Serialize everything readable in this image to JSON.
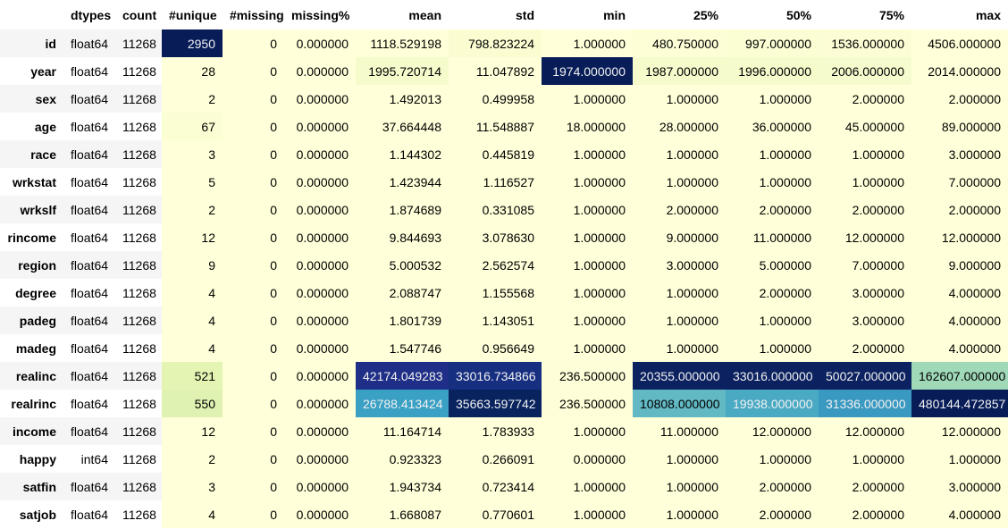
{
  "columns": [
    "dtypes",
    "count",
    "#unique",
    "#missing",
    "missing%",
    "mean",
    "std",
    "min",
    "25%",
    "50%",
    "75%",
    "max"
  ],
  "rows": [
    {
      "name": "id",
      "cells": [
        "float64",
        "11268",
        "2950",
        "0",
        "0.000000",
        "1118.529198",
        "798.823224",
        "1.000000",
        "480.750000",
        "997.000000",
        "1536.000000",
        "4506.000000"
      ]
    },
    {
      "name": "year",
      "cells": [
        "float64",
        "11268",
        "28",
        "0",
        "0.000000",
        "1995.720714",
        "11.047892",
        "1974.000000",
        "1987.000000",
        "1996.000000",
        "2006.000000",
        "2014.000000"
      ]
    },
    {
      "name": "sex",
      "cells": [
        "float64",
        "11268",
        "2",
        "0",
        "0.000000",
        "1.492013",
        "0.499958",
        "1.000000",
        "1.000000",
        "1.000000",
        "2.000000",
        "2.000000"
      ]
    },
    {
      "name": "age",
      "cells": [
        "float64",
        "11268",
        "67",
        "0",
        "0.000000",
        "37.664448",
        "11.548887",
        "18.000000",
        "28.000000",
        "36.000000",
        "45.000000",
        "89.000000"
      ]
    },
    {
      "name": "race",
      "cells": [
        "float64",
        "11268",
        "3",
        "0",
        "0.000000",
        "1.144302",
        "0.445819",
        "1.000000",
        "1.000000",
        "1.000000",
        "1.000000",
        "3.000000"
      ]
    },
    {
      "name": "wrkstat",
      "cells": [
        "float64",
        "11268",
        "5",
        "0",
        "0.000000",
        "1.423944",
        "1.116527",
        "1.000000",
        "1.000000",
        "1.000000",
        "1.000000",
        "7.000000"
      ]
    },
    {
      "name": "wrkslf",
      "cells": [
        "float64",
        "11268",
        "2",
        "0",
        "0.000000",
        "1.874689",
        "0.331085",
        "1.000000",
        "2.000000",
        "2.000000",
        "2.000000",
        "2.000000"
      ]
    },
    {
      "name": "rincome",
      "cells": [
        "float64",
        "11268",
        "12",
        "0",
        "0.000000",
        "9.844693",
        "3.078630",
        "1.000000",
        "9.000000",
        "11.000000",
        "12.000000",
        "12.000000"
      ]
    },
    {
      "name": "region",
      "cells": [
        "float64",
        "11268",
        "9",
        "0",
        "0.000000",
        "5.000532",
        "2.562574",
        "1.000000",
        "3.000000",
        "5.000000",
        "7.000000",
        "9.000000"
      ]
    },
    {
      "name": "degree",
      "cells": [
        "float64",
        "11268",
        "4",
        "0",
        "0.000000",
        "2.088747",
        "1.155568",
        "1.000000",
        "1.000000",
        "2.000000",
        "3.000000",
        "4.000000"
      ]
    },
    {
      "name": "padeg",
      "cells": [
        "float64",
        "11268",
        "4",
        "0",
        "0.000000",
        "1.801739",
        "1.143051",
        "1.000000",
        "1.000000",
        "1.000000",
        "3.000000",
        "4.000000"
      ]
    },
    {
      "name": "madeg",
      "cells": [
        "float64",
        "11268",
        "4",
        "0",
        "0.000000",
        "1.547746",
        "0.956649",
        "1.000000",
        "1.000000",
        "1.000000",
        "2.000000",
        "4.000000"
      ]
    },
    {
      "name": "realinc",
      "cells": [
        "float64",
        "11268",
        "521",
        "0",
        "0.000000",
        "42174.049283",
        "33016.734866",
        "236.500000",
        "20355.000000",
        "33016.000000",
        "50027.000000",
        "162607.000000"
      ]
    },
    {
      "name": "realrinc",
      "cells": [
        "float64",
        "11268",
        "550",
        "0",
        "0.000000",
        "26788.413424",
        "35663.597742",
        "236.500000",
        "10808.000000",
        "19938.000000",
        "31336.000000",
        "480144.472857"
      ]
    },
    {
      "name": "income",
      "cells": [
        "float64",
        "11268",
        "12",
        "0",
        "0.000000",
        "11.164714",
        "1.783933",
        "1.000000",
        "11.000000",
        "12.000000",
        "12.000000",
        "12.000000"
      ]
    },
    {
      "name": "happy",
      "cells": [
        "int64",
        "11268",
        "2",
        "0",
        "0.000000",
        "0.923323",
        "0.266091",
        "0.000000",
        "1.000000",
        "1.000000",
        "1.000000",
        "1.000000"
      ]
    },
    {
      "name": "satfin",
      "cells": [
        "float64",
        "11268",
        "3",
        "0",
        "0.000000",
        "1.943734",
        "0.723414",
        "1.000000",
        "1.000000",
        "2.000000",
        "2.000000",
        "3.000000"
      ]
    },
    {
      "name": "satjob",
      "cells": [
        "float64",
        "11268",
        "4",
        "0",
        "0.000000",
        "1.668087",
        "0.770601",
        "1.000000",
        "1.000000",
        "2.000000",
        "2.000000",
        "4.000000"
      ]
    }
  ],
  "colormap": {
    "low": "#ffffd9",
    "light_green": "#edf8b1",
    "green": "#c7e9b4",
    "teal_light": "#7fcdbb",
    "teal": "#41b6c4",
    "blue": "#1d91c0",
    "blue_mid": "#225ea8",
    "dark": "#253494",
    "darkest": "#081d58"
  },
  "cell_colors": {
    "0": {
      "2": "#081d58",
      "5": "#ffffd9",
      "6": "#fbfdd1",
      "7": "#ffffd9",
      "8": "#fdfed6",
      "9": "#fbfdd2",
      "10": "#fcfdd4",
      "11": "#ffffd9"
    },
    "1": {
      "2": "#ffffd9",
      "5": "#f6fbcb",
      "6": "#ffffd9",
      "7": "#081d58",
      "8": "#f5fbcb",
      "9": "#f5fbcb",
      "10": "#f6fbcd",
      "11": "#ffffd9"
    },
    "3": {
      "2": "#fbfdd3"
    },
    "12": {
      "2": "#e4f4b3",
      "5": "#1f2f87",
      "6": "#172f80",
      "7": "#fefed8",
      "8": "#0c2260",
      "9": "#0c2260",
      "10": "#0c2260",
      "11": "#9fd9b8"
    },
    "13": {
      "2": "#dff2b2",
      "5": "#3aa0c4",
      "6": "#08235e",
      "7": "#fefed8",
      "8": "#62b8c3",
      "9": "#4aa9c3",
      "10": "#3a99c1",
      "11": "#081d58"
    }
  }
}
